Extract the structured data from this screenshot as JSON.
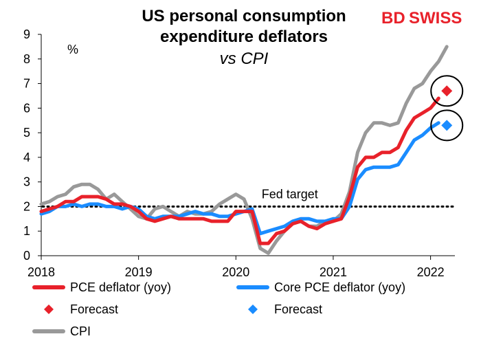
{
  "brand": {
    "prefix": "BD",
    "suffix": "SWISS"
  },
  "chart_data": {
    "type": "line",
    "title": "US personal consumption\nexpenditure deflators",
    "subtitle": "vs CPI",
    "ylabel": "%",
    "ylim": [
      0,
      9
    ],
    "yticks": [
      "0",
      "1",
      "2",
      "3",
      "4",
      "5",
      "6",
      "7",
      "8",
      "9"
    ],
    "xlim": [
      2018.0,
      2022.25
    ],
    "xticks": [
      {
        "value": 2018,
        "label": "2018"
      },
      {
        "value": 2019,
        "label": "2019"
      },
      {
        "value": 2020,
        "label": "2020"
      },
      {
        "value": 2021,
        "label": "2021"
      },
      {
        "value": 2022,
        "label": "2022"
      }
    ],
    "grid": false,
    "annotations": [
      {
        "text": "Fed target",
        "x": 2020.25,
        "y": 2.0
      }
    ],
    "reference_line": {
      "y": 2.0,
      "style": "dotted",
      "label": "Fed target"
    },
    "series": [
      {
        "name": "PCE deflator (yoy)",
        "kind": "line",
        "color": "#e8212a",
        "x": [
          2018.0,
          2018.083,
          2018.167,
          2018.25,
          2018.333,
          2018.417,
          2018.5,
          2018.583,
          2018.667,
          2018.75,
          2018.833,
          2018.917,
          2019.0,
          2019.083,
          2019.167,
          2019.25,
          2019.333,
          2019.417,
          2019.5,
          2019.583,
          2019.667,
          2019.75,
          2019.833,
          2019.917,
          2020.0,
          2020.083,
          2020.167,
          2020.25,
          2020.333,
          2020.417,
          2020.5,
          2020.583,
          2020.667,
          2020.75,
          2020.833,
          2020.917,
          2021.0,
          2021.083,
          2021.167,
          2021.25,
          2021.333,
          2021.417,
          2021.5,
          2021.583,
          2021.667,
          2021.75,
          2021.833,
          2021.917,
          2022.0,
          2022.083
        ],
        "y": [
          1.8,
          1.9,
          2.0,
          2.2,
          2.2,
          2.4,
          2.4,
          2.4,
          2.3,
          2.1,
          2.1,
          2.0,
          1.8,
          1.5,
          1.4,
          1.5,
          1.6,
          1.5,
          1.5,
          1.5,
          1.5,
          1.4,
          1.4,
          1.4,
          1.8,
          1.8,
          1.8,
          0.5,
          0.5,
          0.9,
          1.0,
          1.3,
          1.4,
          1.2,
          1.1,
          1.3,
          1.4,
          1.5,
          2.4,
          3.6,
          4.0,
          4.0,
          4.2,
          4.2,
          4.4,
          5.1,
          5.6,
          5.8,
          6.0,
          6.4
        ]
      },
      {
        "name": "Core PCE deflator (yoy)",
        "kind": "line",
        "color": "#1a8cff",
        "x": [
          2018.0,
          2018.083,
          2018.167,
          2018.25,
          2018.333,
          2018.417,
          2018.5,
          2018.583,
          2018.667,
          2018.75,
          2018.833,
          2018.917,
          2019.0,
          2019.083,
          2019.167,
          2019.25,
          2019.333,
          2019.417,
          2019.5,
          2019.583,
          2019.667,
          2019.75,
          2019.833,
          2019.917,
          2020.0,
          2020.083,
          2020.167,
          2020.25,
          2020.333,
          2020.417,
          2020.5,
          2020.583,
          2020.667,
          2020.75,
          2020.833,
          2020.917,
          2021.0,
          2021.083,
          2021.167,
          2021.25,
          2021.333,
          2021.417,
          2021.5,
          2021.583,
          2021.667,
          2021.75,
          2021.833,
          2021.917,
          2022.0,
          2022.083
        ],
        "y": [
          1.7,
          1.8,
          2.0,
          2.0,
          2.1,
          2.0,
          2.1,
          2.1,
          2.0,
          2.0,
          1.9,
          2.0,
          1.9,
          1.6,
          1.5,
          1.6,
          1.6,
          1.6,
          1.7,
          1.8,
          1.7,
          1.7,
          1.6,
          1.6,
          1.7,
          1.8,
          1.9,
          0.9,
          1.0,
          1.1,
          1.2,
          1.4,
          1.5,
          1.5,
          1.4,
          1.4,
          1.5,
          1.5,
          2.0,
          3.1,
          3.5,
          3.6,
          3.6,
          3.6,
          3.7,
          4.2,
          4.7,
          4.9,
          5.2,
          5.4
        ]
      },
      {
        "name": "CPI",
        "kind": "line",
        "color": "#999999",
        "x": [
          2018.0,
          2018.083,
          2018.167,
          2018.25,
          2018.333,
          2018.417,
          2018.5,
          2018.583,
          2018.667,
          2018.75,
          2018.833,
          2018.917,
          2019.0,
          2019.083,
          2019.167,
          2019.25,
          2019.333,
          2019.417,
          2019.5,
          2019.583,
          2019.667,
          2019.75,
          2019.833,
          2019.917,
          2020.0,
          2020.083,
          2020.167,
          2020.25,
          2020.333,
          2020.417,
          2020.5,
          2020.583,
          2020.667,
          2020.75,
          2020.833,
          2020.917,
          2021.0,
          2021.083,
          2021.167,
          2021.25,
          2021.333,
          2021.417,
          2021.5,
          2021.583,
          2021.667,
          2021.75,
          2021.833,
          2021.917,
          2022.0,
          2022.083,
          2022.167
        ],
        "y": [
          2.1,
          2.2,
          2.4,
          2.5,
          2.8,
          2.9,
          2.9,
          2.7,
          2.3,
          2.5,
          2.2,
          1.9,
          1.6,
          1.5,
          1.9,
          2.0,
          1.8,
          1.6,
          1.8,
          1.7,
          1.7,
          1.8,
          2.1,
          2.3,
          2.5,
          2.3,
          1.5,
          0.3,
          0.1,
          0.6,
          1.0,
          1.3,
          1.4,
          1.2,
          1.2,
          1.4,
          1.4,
          1.7,
          2.6,
          4.2,
          5.0,
          5.4,
          5.4,
          5.3,
          5.4,
          6.2,
          6.8,
          7.0,
          7.5,
          7.9,
          8.5
        ]
      },
      {
        "name": "Forecast",
        "kind": "marker",
        "color": "#e8212a",
        "x": [
          2022.167
        ],
        "y": [
          6.7
        ]
      },
      {
        "name": "Forecast",
        "kind": "marker",
        "color": "#1a8cff",
        "x": [
          2022.167
        ],
        "y": [
          5.3
        ]
      }
    ],
    "legend": [
      {
        "label": "PCE deflator (yoy)",
        "kind": "line",
        "color": "#e8212a"
      },
      {
        "label": "Core PCE deflator (yoy)",
        "kind": "line",
        "color": "#1a8cff"
      },
      {
        "label": "Forecast",
        "kind": "marker",
        "color": "#e8212a"
      },
      {
        "label": "Forecast",
        "kind": "marker",
        "color": "#1a8cff"
      },
      {
        "label": "CPI",
        "kind": "line",
        "color": "#999999"
      }
    ],
    "legend_position": "bottom",
    "highlight_circles": [
      {
        "x": 2022.167,
        "y": 6.7
      },
      {
        "x": 2022.167,
        "y": 5.3
      }
    ]
  }
}
